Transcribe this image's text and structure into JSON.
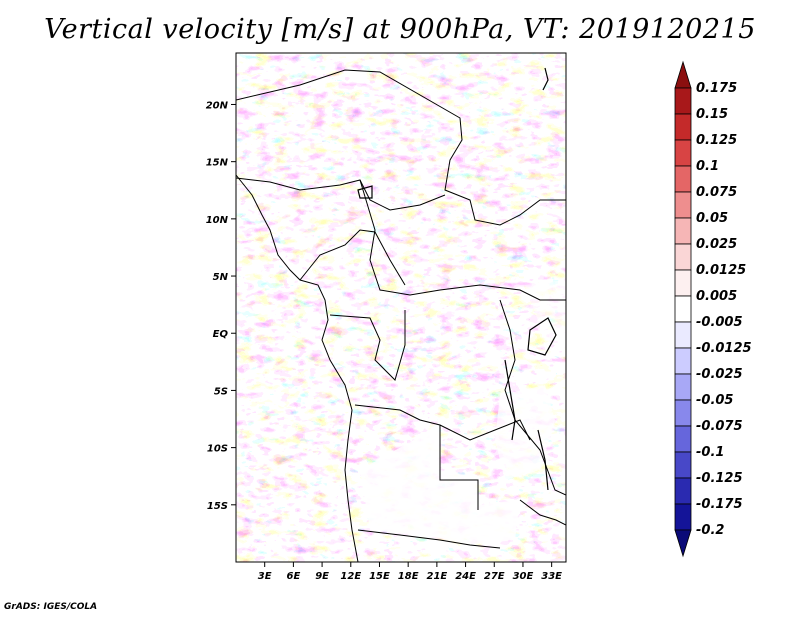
{
  "title": "Vertical velocity [m/s] at 900hPa, VT: 2019120215",
  "credit": "GrADS: IGES/COLA",
  "map": {
    "lon_range": [
      0,
      34.5
    ],
    "lat_range": [
      -20,
      24.5
    ],
    "lon_ticks": [
      "3E",
      "6E",
      "9E",
      "12E",
      "15E",
      "18E",
      "21E",
      "24E",
      "27E",
      "30E",
      "33E"
    ],
    "lon_tick_values": [
      3,
      6,
      9,
      12,
      15,
      18,
      21,
      24,
      27,
      30,
      33
    ],
    "lat_ticks": [
      "20N",
      "15N",
      "10N",
      "5N",
      "EQ",
      "5S",
      "10S",
      "15S"
    ],
    "lat_tick_values": [
      20,
      15,
      10,
      5,
      0,
      -5,
      -10,
      -15
    ]
  },
  "colorbar": {
    "labels": [
      "0.175",
      "0.15",
      "0.125",
      "0.1",
      "0.075",
      "0.05",
      "0.025",
      "0.0125",
      "0.005",
      "-0.005",
      "-0.0125",
      "-0.025",
      "-0.05",
      "-0.075",
      "-0.1",
      "-0.125",
      "-0.175",
      "-0.2"
    ],
    "colors": [
      "#8b0f0f",
      "#a8181a",
      "#c42a2a",
      "#d84444",
      "#e46666",
      "#ee8e8e",
      "#f6b6b6",
      "#fad6d6",
      "#fdf0f0",
      "#ffffff",
      "#eaeaff",
      "#ccccff",
      "#a8a8f6",
      "#8888ec",
      "#6666dc",
      "#4848c8",
      "#2a2ab0",
      "#141498",
      "#0a0a78"
    ]
  }
}
